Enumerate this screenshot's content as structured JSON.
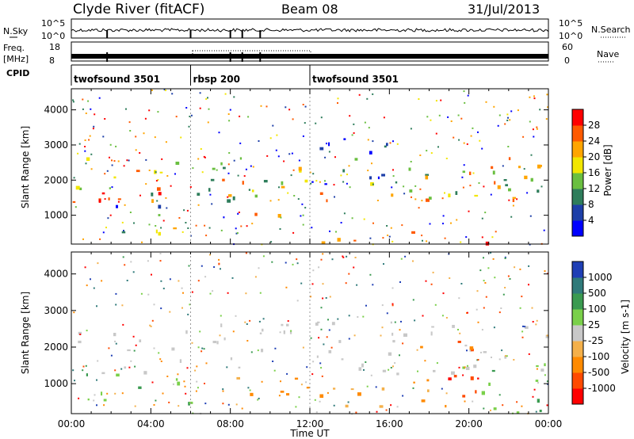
{
  "header": {
    "station": "Clyde River (fitACF)",
    "beam": "Beam 08",
    "date": "31/Jul/2013"
  },
  "status_panel": {
    "nsky_label": "N.Sky",
    "nsky_ticks": [
      "10^5",
      "10^0"
    ],
    "nsearch_label": "N.Search",
    "nsearch_ticks": [
      "10^5",
      "10^0"
    ],
    "freq_label_1": "Freq.",
    "freq_label_2": "[MHz]",
    "freq_ticks": [
      "18",
      "8"
    ],
    "nave_label": "Nave",
    "nave_ticks": [
      "60",
      "0"
    ],
    "cpid_label": "CPID",
    "cpid_segments": [
      {
        "label": "twofsound 3501",
        "start_hour": 0,
        "end_hour": 6
      },
      {
        "label": "rbsp 200",
        "start_hour": 6,
        "end_hour": 12
      },
      {
        "label": "twofsound 3501",
        "start_hour": 12,
        "end_hour": 24
      }
    ]
  },
  "chart_data": [
    {
      "type": "heatmap",
      "quantity": "power",
      "xlabel": "",
      "ylabel": "Slant Range [km]",
      "xlim": [
        0,
        24
      ],
      "ylim": [
        180,
        4600
      ],
      "yticks": [
        "1000",
        "2000",
        "3000",
        "4000"
      ],
      "colorbar_label": "Power [dB]",
      "colorbar_range": [
        0,
        32
      ],
      "colorbar_ticks": [
        "4",
        "8",
        "12",
        "16",
        "20",
        "24",
        "28"
      ],
      "colorbar_colors": [
        "#0000ff",
        "#1d3fa8",
        "#2e7d5b",
        "#6abf40",
        "#f2e600",
        "#ffa500",
        "#ff5a00",
        "#ff0000"
      ],
      "regions": [
        {
          "t0": 0.0,
          "t1": 24.0,
          "r0": 1450,
          "r1": 2700,
          "level": "mid"
        },
        {
          "t0": 0.0,
          "t1": 6.0,
          "r0": 1400,
          "r1": 1900,
          "level": "high"
        },
        {
          "t0": 2.0,
          "t1": 6.0,
          "r0": 500,
          "r1": 1400,
          "level": "mixed"
        },
        {
          "t0": 7.5,
          "t1": 11.5,
          "r0": 700,
          "r1": 1200,
          "level": "mixed"
        },
        {
          "t0": 12.0,
          "t1": 20.0,
          "r0": 250,
          "r1": 600,
          "level": "high"
        },
        {
          "t0": 12.0,
          "t1": 16.0,
          "r0": 1800,
          "r1": 3300,
          "level": "low"
        },
        {
          "t0": 20.0,
          "t1": 22.0,
          "r0": 200,
          "r1": 400,
          "level": "high"
        },
        {
          "t0": 21.0,
          "t1": 24.0,
          "r0": 1400,
          "r1": 2200,
          "level": "mid"
        }
      ]
    },
    {
      "type": "heatmap",
      "quantity": "velocity",
      "xlabel": "Time UT",
      "ylabel": "Slant Range [km]",
      "xlim": [
        0,
        24
      ],
      "xticks": [
        "00:00",
        "04:00",
        "08:00",
        "12:00",
        "16:00",
        "20:00",
        "00:00"
      ],
      "ylim": [
        180,
        4600
      ],
      "yticks": [
        "1000",
        "2000",
        "3000",
        "4000"
      ],
      "colorbar_label": "Velocity [m s-1]",
      "colorbar_ticks": [
        "1000",
        "500",
        "100",
        "25",
        "-25",
        "-100",
        "-500",
        "-1000"
      ],
      "colorbar_colors": [
        "#1f3fb5",
        "#2f7a7a",
        "#3a9a50",
        "#7ad04a",
        "#c8c8c8",
        "#f4b04a",
        "#ff8a00",
        "#ff4a00",
        "#ff0000"
      ],
      "regions": [
        {
          "t0": 0.0,
          "t1": 24.0,
          "r0": 1300,
          "r1": 2700,
          "level": "ground"
        },
        {
          "t0": 0.0,
          "t1": 6.0,
          "r0": 500,
          "r1": 1300,
          "level": "toward-slow"
        },
        {
          "t0": 6.0,
          "t1": 12.0,
          "r0": 600,
          "r1": 1200,
          "level": "away"
        },
        {
          "t0": 12.0,
          "t1": 19.0,
          "r0": 250,
          "r1": 900,
          "level": "away"
        },
        {
          "t0": 17.0,
          "t1": 20.5,
          "r0": 500,
          "r1": 2200,
          "level": "away-fast"
        },
        {
          "t0": 19.5,
          "t1": 24.0,
          "r0": 200,
          "r1": 1600,
          "level": "toward-slow"
        }
      ]
    }
  ]
}
